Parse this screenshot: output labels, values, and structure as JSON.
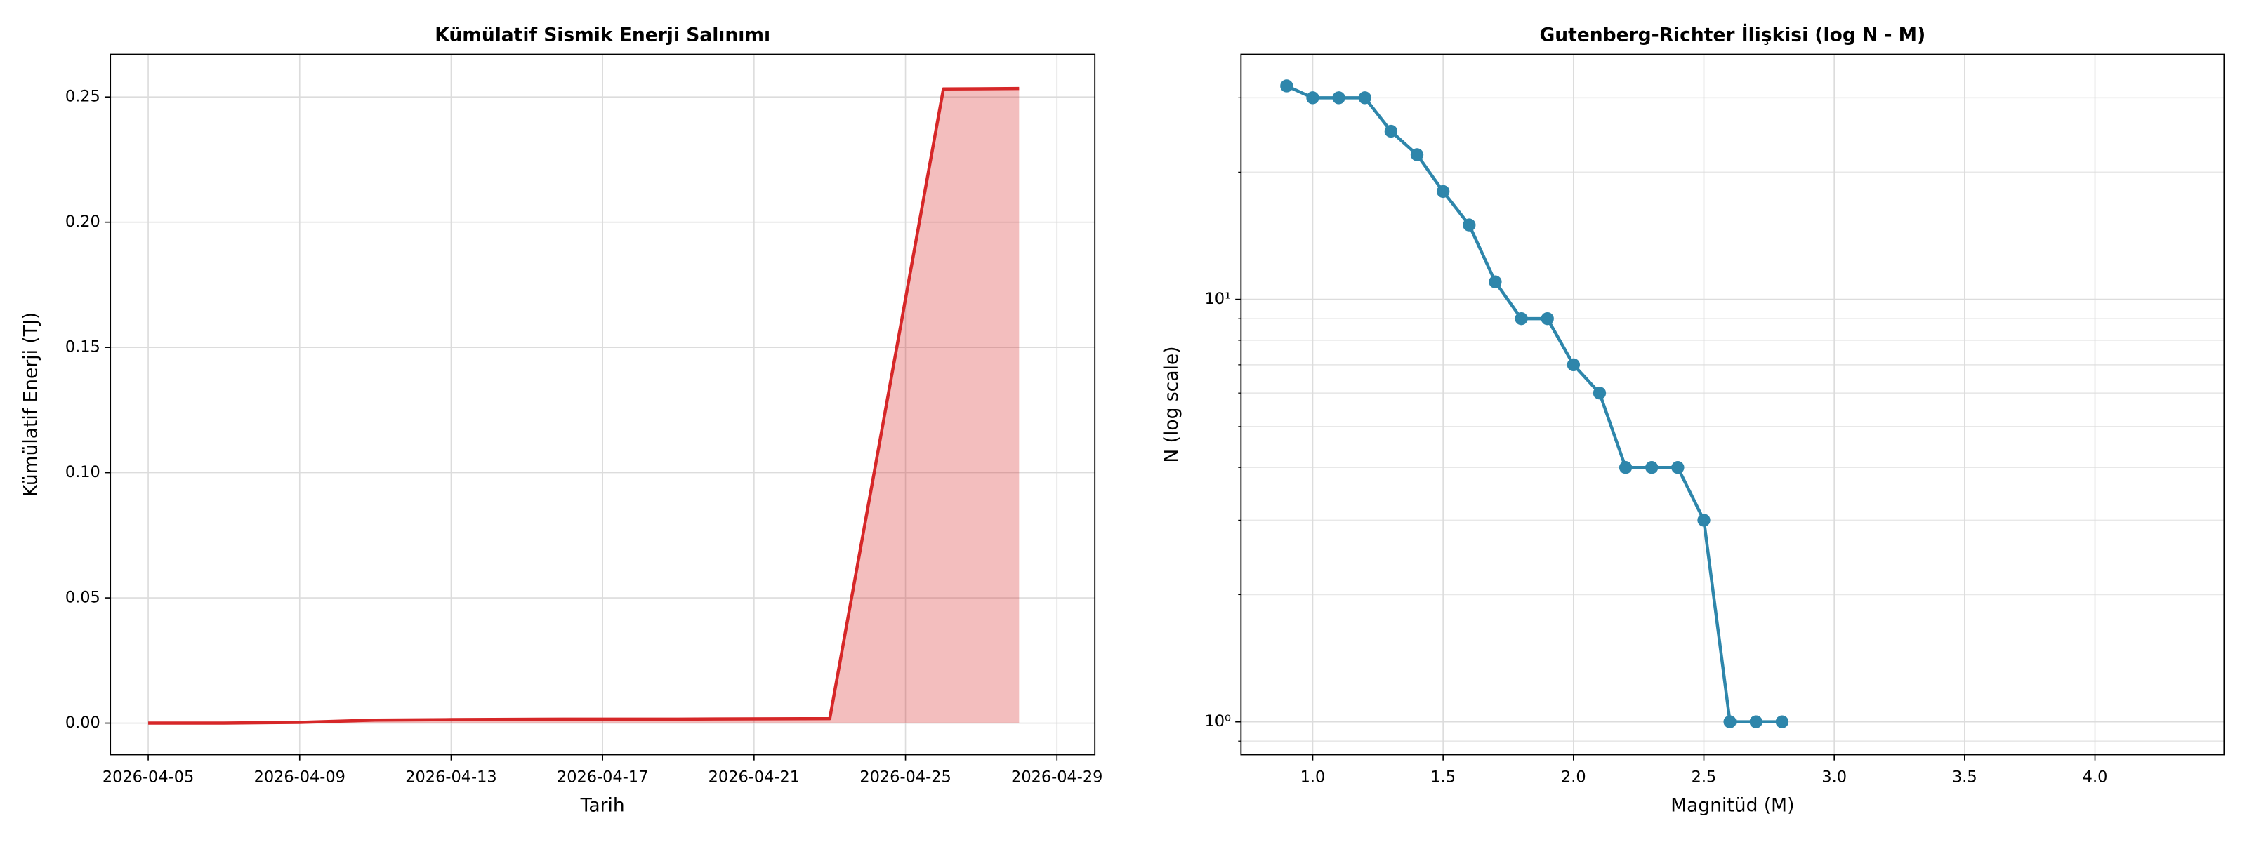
{
  "chart_data": [
    {
      "type": "area-line",
      "title": "Kümülatif Sismik Enerji Salınımı",
      "xlabel": "Tarih",
      "ylabel": "Kümülatif Enerji (TJ)",
      "x": [
        "2026-04-05",
        "2026-04-07",
        "2026-04-09",
        "2026-04-11",
        "2026-04-13",
        "2026-04-16",
        "2026-04-19",
        "2026-04-23",
        "2026-04-26",
        "2026-04-28"
      ],
      "series": [
        {
          "name": "Kümülatif Enerji",
          "color": "#d62728",
          "values": [
            0,
            0,
            0.0003,
            0.0012,
            0.0014,
            0.0016,
            0.0016,
            0.0018,
            0.2532,
            0.2534
          ]
        }
      ],
      "xlim": [
        "2026-04-04",
        "2026-04-30"
      ],
      "xticks": [
        "2026-04-05",
        "2026-04-09",
        "2026-04-13",
        "2026-04-17",
        "2026-04-21",
        "2026-04-25",
        "2026-04-29"
      ],
      "ylim": [
        -0.0126,
        0.267
      ],
      "yticks": [
        {
          "value": 0,
          "label": "0.00"
        },
        {
          "value": 0.05,
          "label": "0.05"
        },
        {
          "value": 0.1,
          "label": "0.10"
        },
        {
          "value": 0.15,
          "label": "0.15"
        },
        {
          "value": 0.2,
          "label": "0.20"
        },
        {
          "value": 0.25,
          "label": "0.25"
        }
      ],
      "grid": true
    },
    {
      "type": "line",
      "title": "Gutenberg-Richter İlişkisi (log N - M)",
      "xlabel": "Magnitüd (M)",
      "ylabel": "N (log scale)",
      "x": [
        0.9,
        1.0,
        1.1,
        1.2,
        1.3,
        1.4,
        1.5,
        1.6,
        1.7,
        1.8,
        1.9,
        2.0,
        2.1,
        2.2,
        2.3,
        2.4,
        2.5,
        2.6,
        2.7,
        2.8
      ],
      "series": [
        {
          "name": "N",
          "color": "#2e86ab",
          "values": [
            32,
            30,
            30,
            30,
            25,
            22,
            18,
            15,
            11,
            9,
            9,
            7,
            6,
            4,
            4,
            4,
            3,
            1,
            1,
            1
          ]
        }
      ],
      "xlim": [
        0.725,
        4.495
      ],
      "xticks": [
        {
          "value": 1,
          "label": "1.0"
        },
        {
          "value": 1.5,
          "label": "1.5"
        },
        {
          "value": 2,
          "label": "2.0"
        },
        {
          "value": 2.5,
          "label": "2.5"
        },
        {
          "value": 3,
          "label": "3.0"
        },
        {
          "value": 3.5,
          "label": "3.5"
        },
        {
          "value": 4,
          "label": "4.0"
        }
      ],
      "ylim": [
        0.836,
        38
      ],
      "yticks": [
        {
          "value": 1,
          "label": "10⁰"
        },
        {
          "value": 10,
          "label": "10¹"
        }
      ],
      "ylog": true,
      "grid": true,
      "minor_grid": true,
      "markers": true
    }
  ]
}
